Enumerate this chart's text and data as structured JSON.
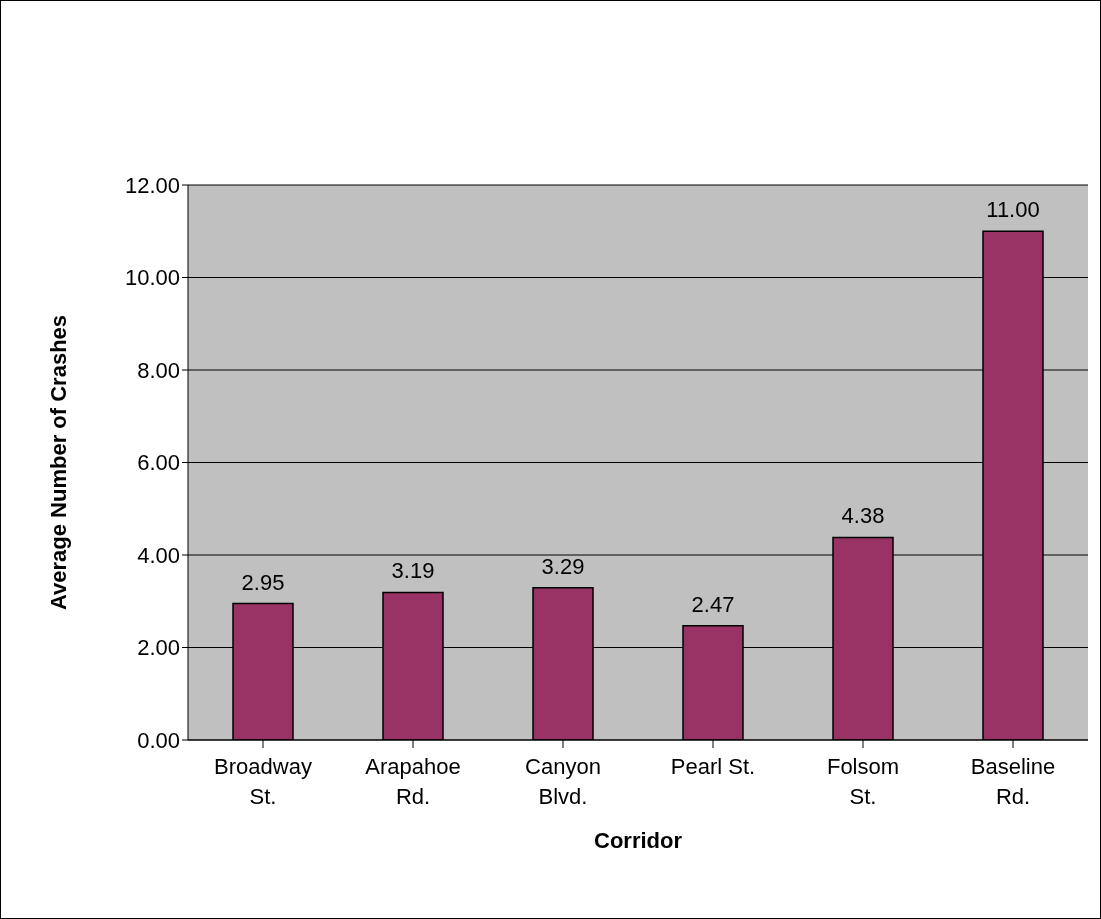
{
  "chart_data": {
    "type": "bar",
    "xlabel": "Corridor",
    "ylabel": "Average Number of Crashes",
    "categories": [
      "Broadway St.",
      "Arapahoe Rd.",
      "Canyon Blvd.",
      "Pearl St.",
      "Folsom St.",
      "Baseline Rd."
    ],
    "values": [
      2.95,
      3.19,
      3.29,
      2.47,
      4.38,
      11.0
    ],
    "value_labels": [
      "2.95",
      "3.19",
      "3.29",
      "2.47",
      "4.38",
      "11.00"
    ],
    "color": "#993366",
    "ylim": [
      0,
      12
    ],
    "yticks": [
      {
        "value": 0,
        "label": "0.00"
      },
      {
        "value": 2,
        "label": "2.00"
      },
      {
        "value": 4,
        "label": "4.00"
      },
      {
        "value": 6,
        "label": "6.00"
      },
      {
        "value": 8,
        "label": "8.00"
      },
      {
        "value": 10,
        "label": "10.00"
      },
      {
        "value": 12,
        "label": "12.00"
      }
    ],
    "grid": "y",
    "legend": false
  }
}
